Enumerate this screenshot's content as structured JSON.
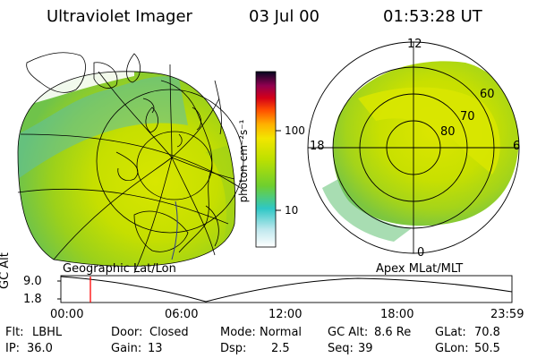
{
  "header": {
    "title": "Ultraviolet Imager",
    "date": "03 Jul 00",
    "time": "01:53:28 UT"
  },
  "left_panel": {
    "caption": "Geographic Lat/Lon"
  },
  "right_panel": {
    "caption": "Apex MLat/MLT",
    "mlt_labels": {
      "top": "12",
      "left": "18",
      "right": "6",
      "bottom": "0"
    },
    "lat_labels": [
      "60",
      "70",
      "80"
    ]
  },
  "colorbar": {
    "unit_label": "photon cm⁻²s⁻¹",
    "ticks": [
      "100",
      "10"
    ]
  },
  "altitude_strip": {
    "ylabel": "GC Alt",
    "ytick_top": "9.0",
    "ytick_bottom": "1.8",
    "time_ticks": [
      "00:00",
      "06:00",
      "12:00",
      "18:00",
      "23:59"
    ],
    "marker_color": "#ff0000"
  },
  "info": {
    "row1": [
      {
        "label": "Flt:",
        "value": "LBHL"
      },
      {
        "label": "Door:",
        "value": "Closed"
      },
      {
        "label": "Mode:",
        "value": "Normal"
      },
      {
        "label": "GC Alt:",
        "value": "8.6 Re"
      },
      {
        "label": "GLat:",
        "value": "70.8"
      }
    ],
    "row2": [
      {
        "label": "IP:",
        "value": "36.0"
      },
      {
        "label": "Gain:",
        "value": "13"
      },
      {
        "label": "Dsp:",
        "value": "2.5"
      },
      {
        "label": "Seq:",
        "value": "39"
      },
      {
        "label": "GLon:",
        "value": "50.5"
      }
    ]
  }
}
